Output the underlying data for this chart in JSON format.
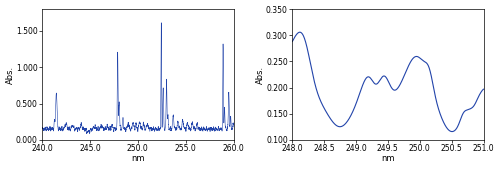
{
  "left_xlim": [
    240.0,
    260.0
  ],
  "left_ylim": [
    0.0,
    1.8
  ],
  "left_xticks": [
    240.0,
    245.0,
    250.0,
    255.0,
    260.0
  ],
  "left_yticks": [
    0.0,
    0.5,
    1.0,
    1.5
  ],
  "left_xlabel": "nm",
  "left_ylabel": "Abs.",
  "right_xlim": [
    248.0,
    251.0
  ],
  "right_ylim": [
    0.1,
    0.35
  ],
  "right_xticks": [
    248.0,
    248.5,
    249.0,
    249.5,
    250.0,
    250.5,
    251.0
  ],
  "right_yticks": [
    0.1,
    0.15,
    0.2,
    0.25,
    0.3,
    0.35
  ],
  "right_xlabel": "nm",
  "right_ylabel": "Abs.",
  "line_color": "#2244aa",
  "background_color": "#ffffff",
  "label_fontsize": 6,
  "tick_fontsize": 5.5
}
